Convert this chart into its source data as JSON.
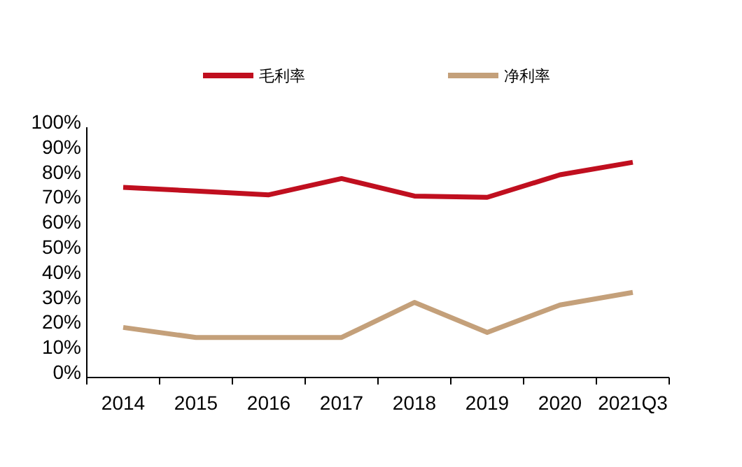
{
  "chart_data": {
    "type": "line",
    "categories": [
      "2014",
      "2015",
      "2016",
      "2017",
      "2018",
      "2019",
      "2020",
      "2021Q3"
    ],
    "series": [
      {
        "name": "毛利率",
        "color": "#c00f1f",
        "values": [
          76,
          74.5,
          73,
          79.5,
          72.5,
          72,
          81,
          86
        ]
      },
      {
        "name": "净利率",
        "color": "#c4a07a",
        "values": [
          20,
          16,
          16,
          16,
          30,
          18,
          29,
          34
        ]
      }
    ],
    "ylim": [
      0,
      100
    ],
    "yticks": [
      {
        "value": 0,
        "label": "0%"
      },
      {
        "value": 10,
        "label": "10%"
      },
      {
        "value": 20,
        "label": "20%"
      },
      {
        "value": 30,
        "label": "30%"
      },
      {
        "value": 40,
        "label": "40%"
      },
      {
        "value": 50,
        "label": "50%"
      },
      {
        "value": 60,
        "label": "60%"
      },
      {
        "value": 70,
        "label": "70%"
      },
      {
        "value": 80,
        "label": "80%"
      },
      {
        "value": 90,
        "label": "90%"
      },
      {
        "value": 100,
        "label": "100%"
      }
    ],
    "grid": false,
    "legend": "top",
    "marker": "none",
    "line_style": "solid"
  }
}
